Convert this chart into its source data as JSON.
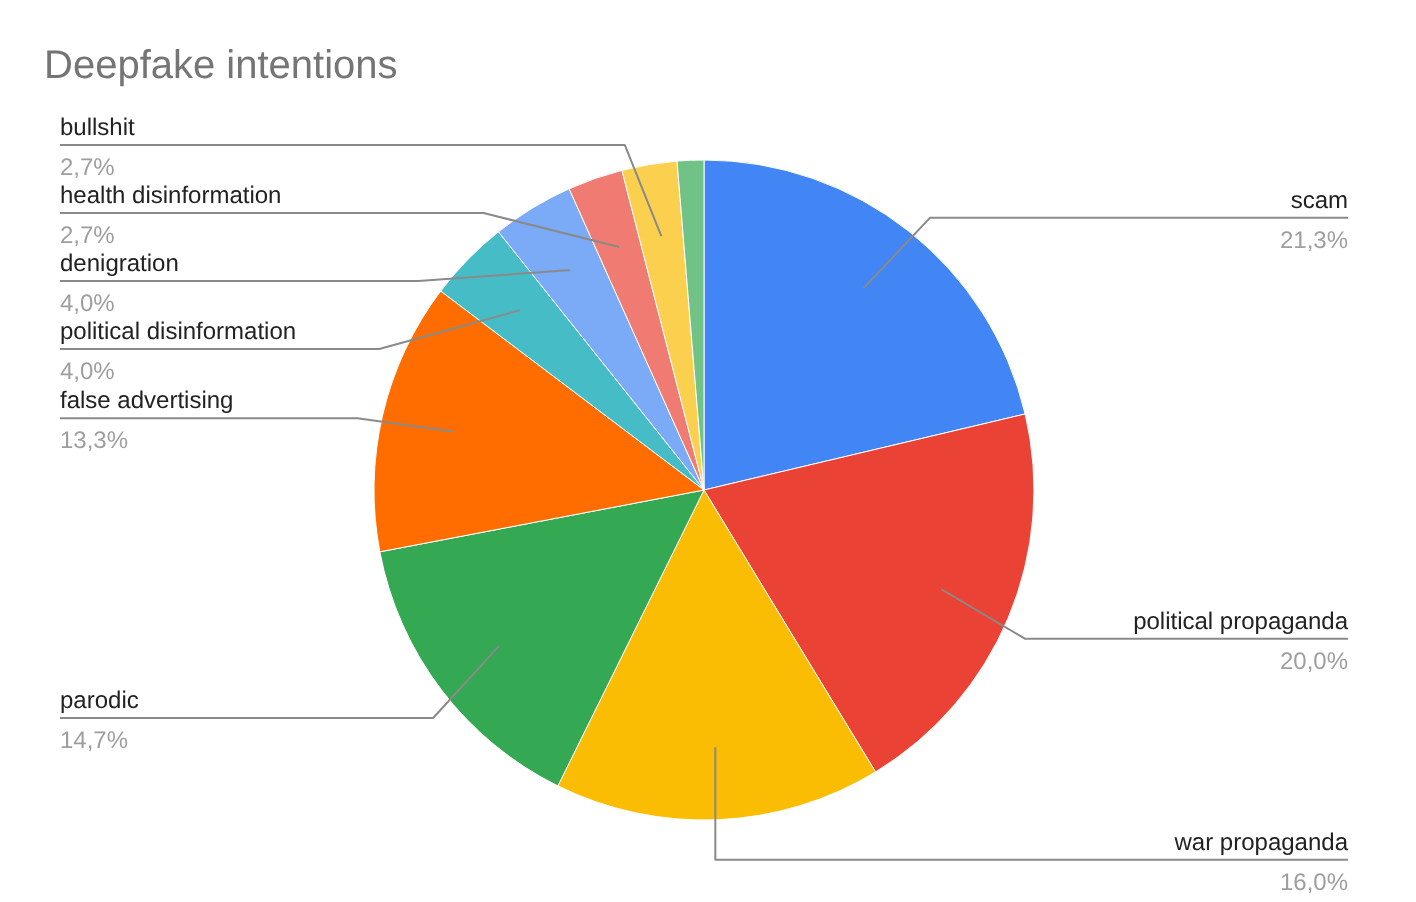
{
  "chart_data": {
    "type": "pie",
    "title": "Deepfake intentions",
    "categories": [
      "scam",
      "political propaganda",
      "war propaganda",
      "parodic",
      "false advertising",
      "political disinformation",
      "denigration",
      "health disinformation",
      "bullshit",
      null
    ],
    "values": [
      21.3,
      20.0,
      16.0,
      14.7,
      13.3,
      4.0,
      4.0,
      2.7,
      2.7,
      1.3
    ],
    "colors": [
      "#4285f4",
      "#ea4335",
      "#fbbc04",
      "#34a853",
      "#ff6d01",
      "#46bdc6",
      "#7baaf7",
      "#f07b72",
      "#fcd04f",
      "#71c287"
    ],
    "value_labels": [
      "21,3%",
      "20,0%",
      "16,0%",
      "14,7%",
      "13,3%",
      "4,0%",
      "4,0%",
      "2,7%",
      "2,7%",
      null
    ]
  }
}
